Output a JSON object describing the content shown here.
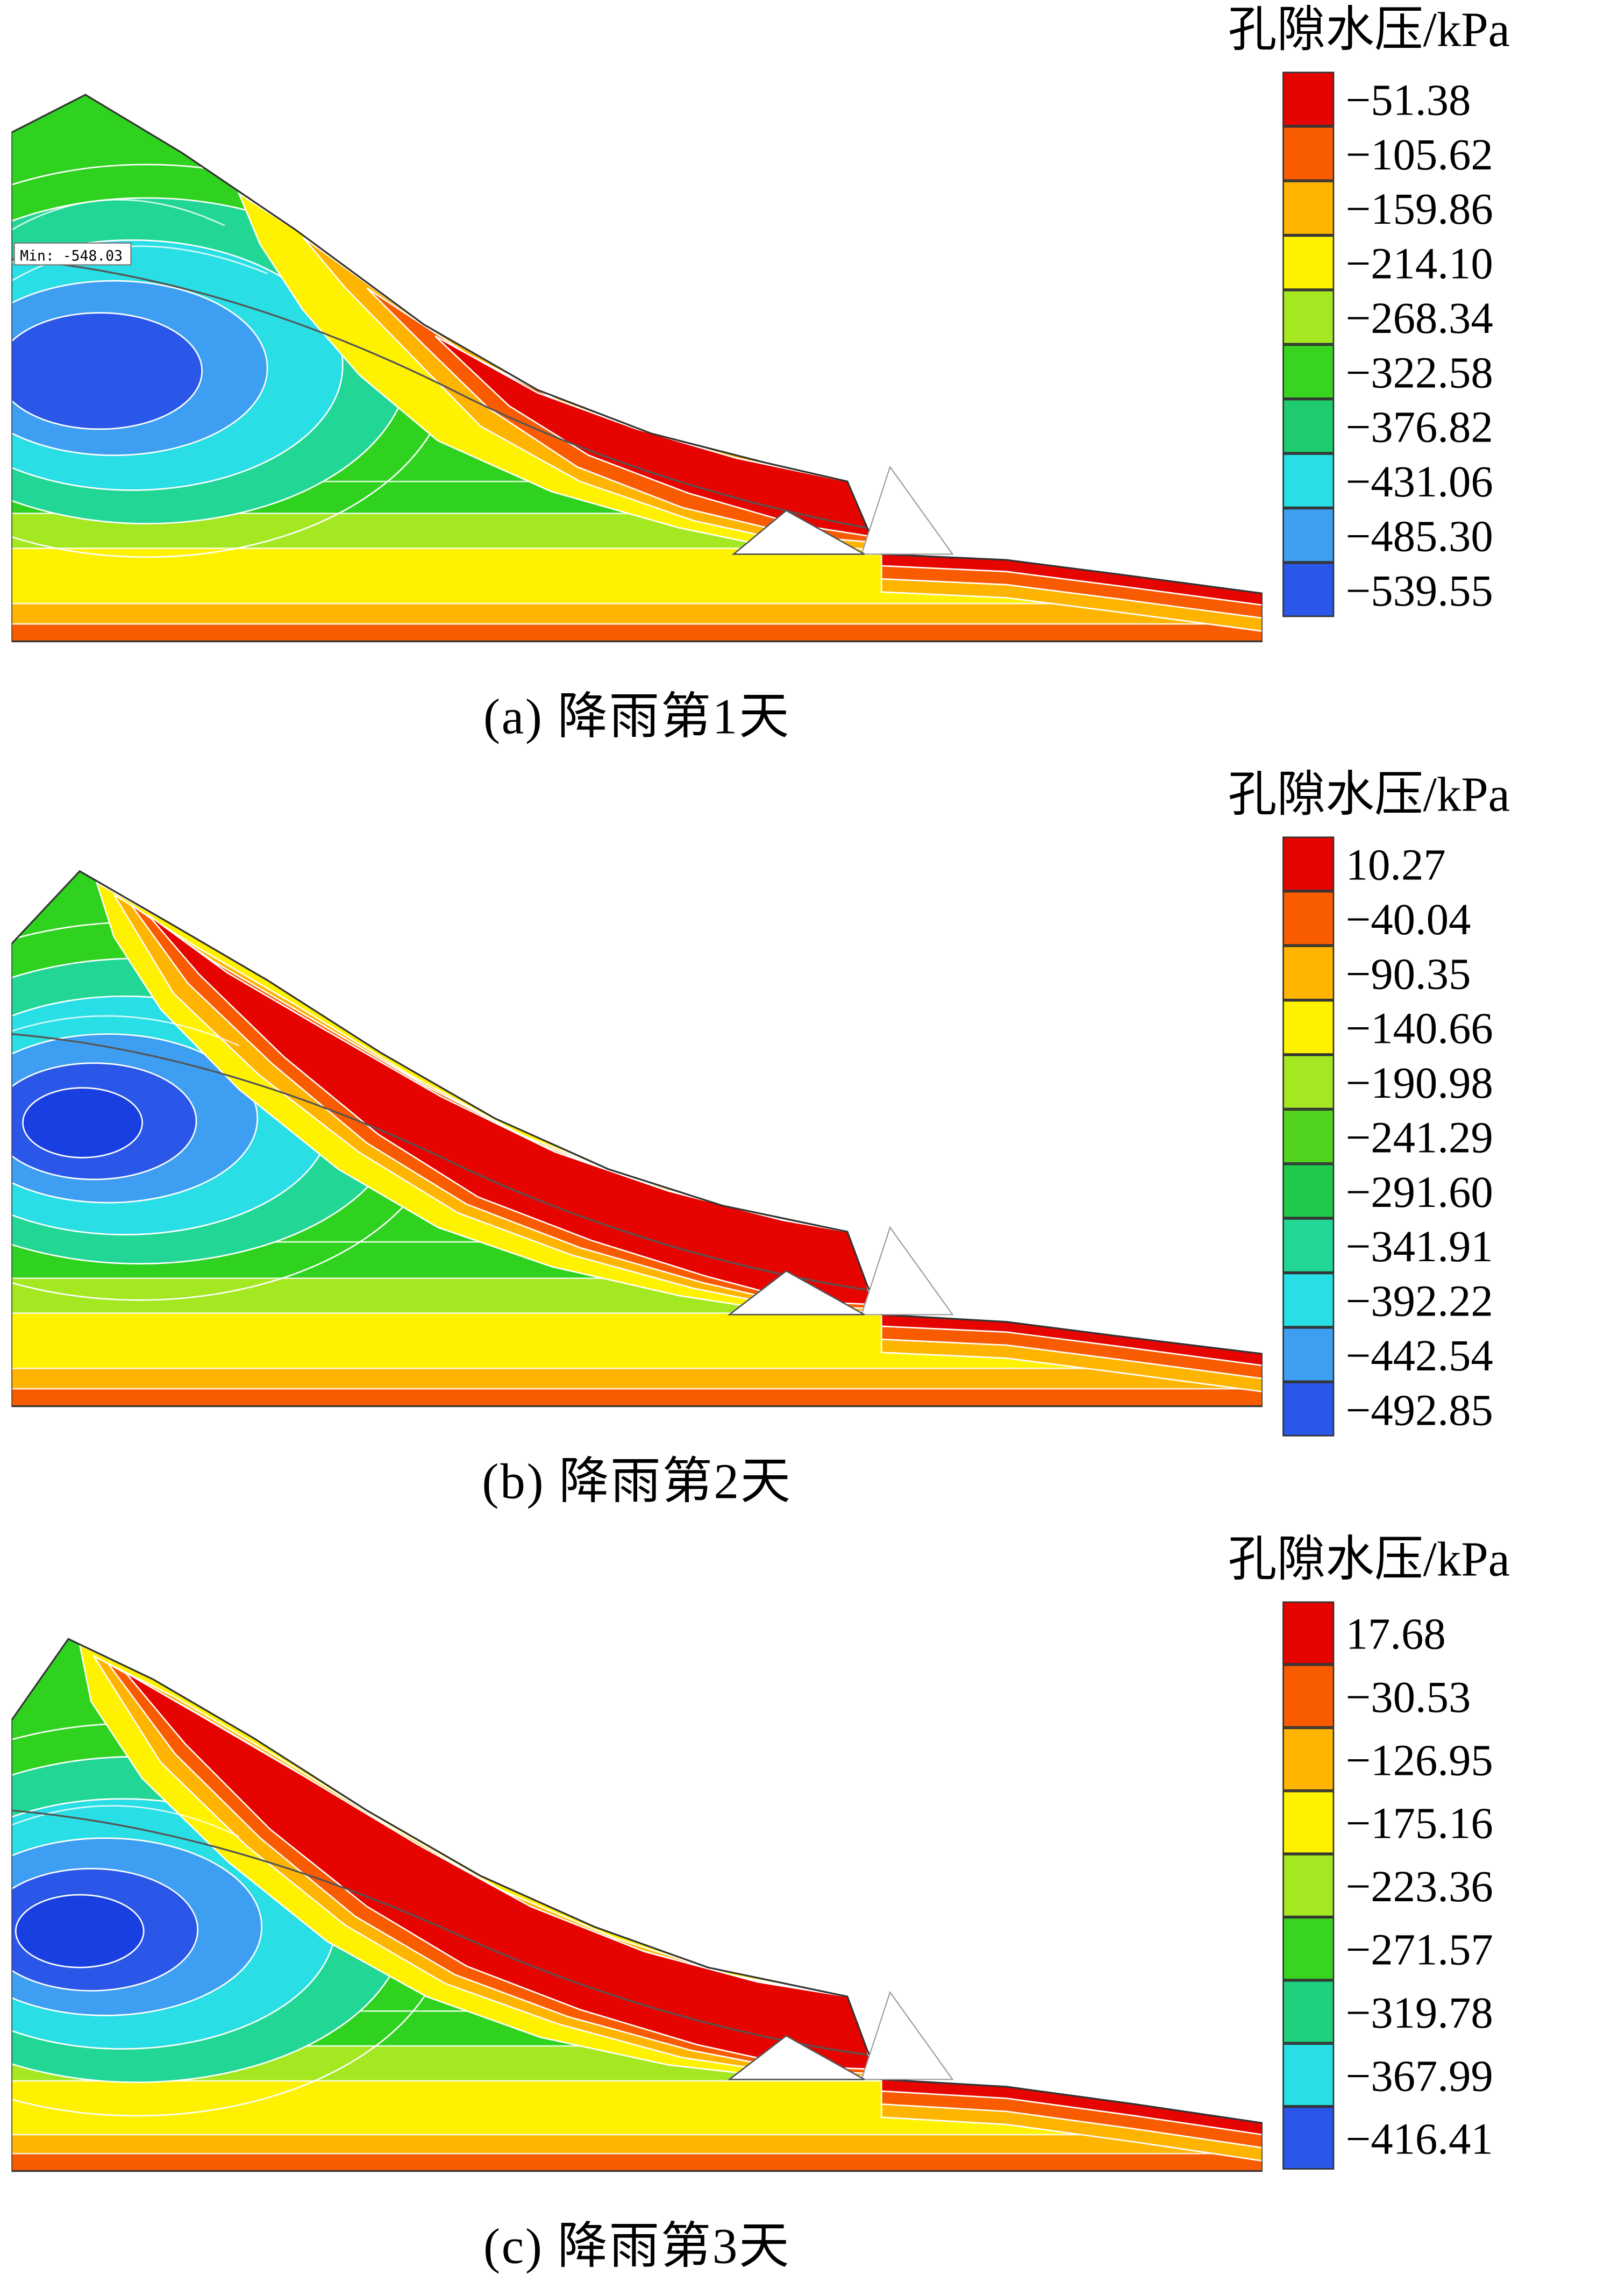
{
  "figure": {
    "panels": [
      {
        "id": "a",
        "legend_title": "孔隙水压/kPa",
        "caption": "(a)  降雨第1天",
        "min_label": "Min: -548.03",
        "legend": [
          {
            "label": "−51.38",
            "color": "#e60400"
          },
          {
            "label": "−105.62",
            "color": "#f95c00"
          },
          {
            "label": "−159.86",
            "color": "#ffb400"
          },
          {
            "label": "−214.10",
            "color": "#fff200"
          },
          {
            "label": "−268.34",
            "color": "#a4e821"
          },
          {
            "label": "−322.58",
            "color": "#38d41f"
          },
          {
            "label": "−376.82",
            "color": "#1ecb6e"
          },
          {
            "label": "−431.06",
            "color": "#29dee4"
          },
          {
            "label": "−485.30",
            "color": "#3e9ff2"
          },
          {
            "label": "−539.55",
            "color": "#2b57e8"
          }
        ]
      },
      {
        "id": "b",
        "legend_title": "孔隙水压/kPa",
        "caption": "(b)  降雨第2天",
        "legend": [
          {
            "label": "10.27",
            "color": "#e60400"
          },
          {
            "label": "−40.04",
            "color": "#f95c00"
          },
          {
            "label": "−90.35",
            "color": "#ffb400"
          },
          {
            "label": "−140.66",
            "color": "#fff200"
          },
          {
            "label": "−190.98",
            "color": "#a4e821"
          },
          {
            "label": "−241.29",
            "color": "#52d41f"
          },
          {
            "label": "−291.60",
            "color": "#1fc94a"
          },
          {
            "label": "−341.91",
            "color": "#22d795"
          },
          {
            "label": "−392.22",
            "color": "#29dee4"
          },
          {
            "label": "−442.54",
            "color": "#3e9ff2"
          },
          {
            "label": "−492.85",
            "color": "#2b57e8"
          }
        ]
      },
      {
        "id": "c",
        "legend_title": "孔隙水压/kPa",
        "caption": "(c)  降雨第3天",
        "legend": [
          {
            "label": "17.68",
            "color": "#e60400"
          },
          {
            "label": "−30.53",
            "color": "#f95c00"
          },
          {
            "label": "−126.95",
            "color": "#ffb400"
          },
          {
            "label": "−175.16",
            "color": "#fff200"
          },
          {
            "label": "−223.36",
            "color": "#a4e821"
          },
          {
            "label": "−271.57",
            "color": "#38d41f"
          },
          {
            "label": "−319.78",
            "color": "#1fd07f"
          },
          {
            "label": "−367.99",
            "color": "#29dee4"
          },
          {
            "label": "−416.41",
            "color": "#2b57e8"
          }
        ]
      }
    ]
  },
  "chart_data": [
    {
      "type": "heatmap",
      "variant": "filled_contour_slope_section",
      "title": "孔隙水压/kPa",
      "caption": "(a) 降雨第1天",
      "legend_position": "right",
      "levels_kPa": [
        -51.38,
        -105.62,
        -159.86,
        -214.1,
        -268.34,
        -322.58,
        -376.82,
        -431.06,
        -485.3,
        -539.55
      ],
      "level_colors": [
        "#e60400",
        "#f95c00",
        "#ffb400",
        "#fff200",
        "#a4e821",
        "#38d41f",
        "#1ecb6e",
        "#29dee4",
        "#3e9ff2",
        "#2b57e8"
      ],
      "annotations": [
        "Min: -548.03"
      ]
    },
    {
      "type": "heatmap",
      "variant": "filled_contour_slope_section",
      "title": "孔隙水压/kPa",
      "caption": "(b) 降雨第2天",
      "legend_position": "right",
      "levels_kPa": [
        10.27,
        -40.04,
        -90.35,
        -140.66,
        -190.98,
        -241.29,
        -291.6,
        -341.91,
        -392.22,
        -442.54,
        -492.85
      ],
      "level_colors": [
        "#e60400",
        "#f95c00",
        "#ffb400",
        "#fff200",
        "#a4e821",
        "#52d41f",
        "#1fc94a",
        "#22d795",
        "#29dee4",
        "#3e9ff2",
        "#2b57e8"
      ],
      "annotations": []
    },
    {
      "type": "heatmap",
      "variant": "filled_contour_slope_section",
      "title": "孔隙水压/kPa",
      "caption": "(c) 降雨第3天",
      "legend_position": "right",
      "levels_kPa": [
        17.68,
        -30.53,
        -126.95,
        -175.16,
        -223.36,
        -271.57,
        -319.78,
        -367.99,
        -416.41
      ],
      "level_colors": [
        "#e60400",
        "#f95c00",
        "#ffb400",
        "#fff200",
        "#a4e821",
        "#38d41f",
        "#1fd07f",
        "#29dee4",
        "#2b57e8"
      ],
      "annotations": []
    }
  ]
}
